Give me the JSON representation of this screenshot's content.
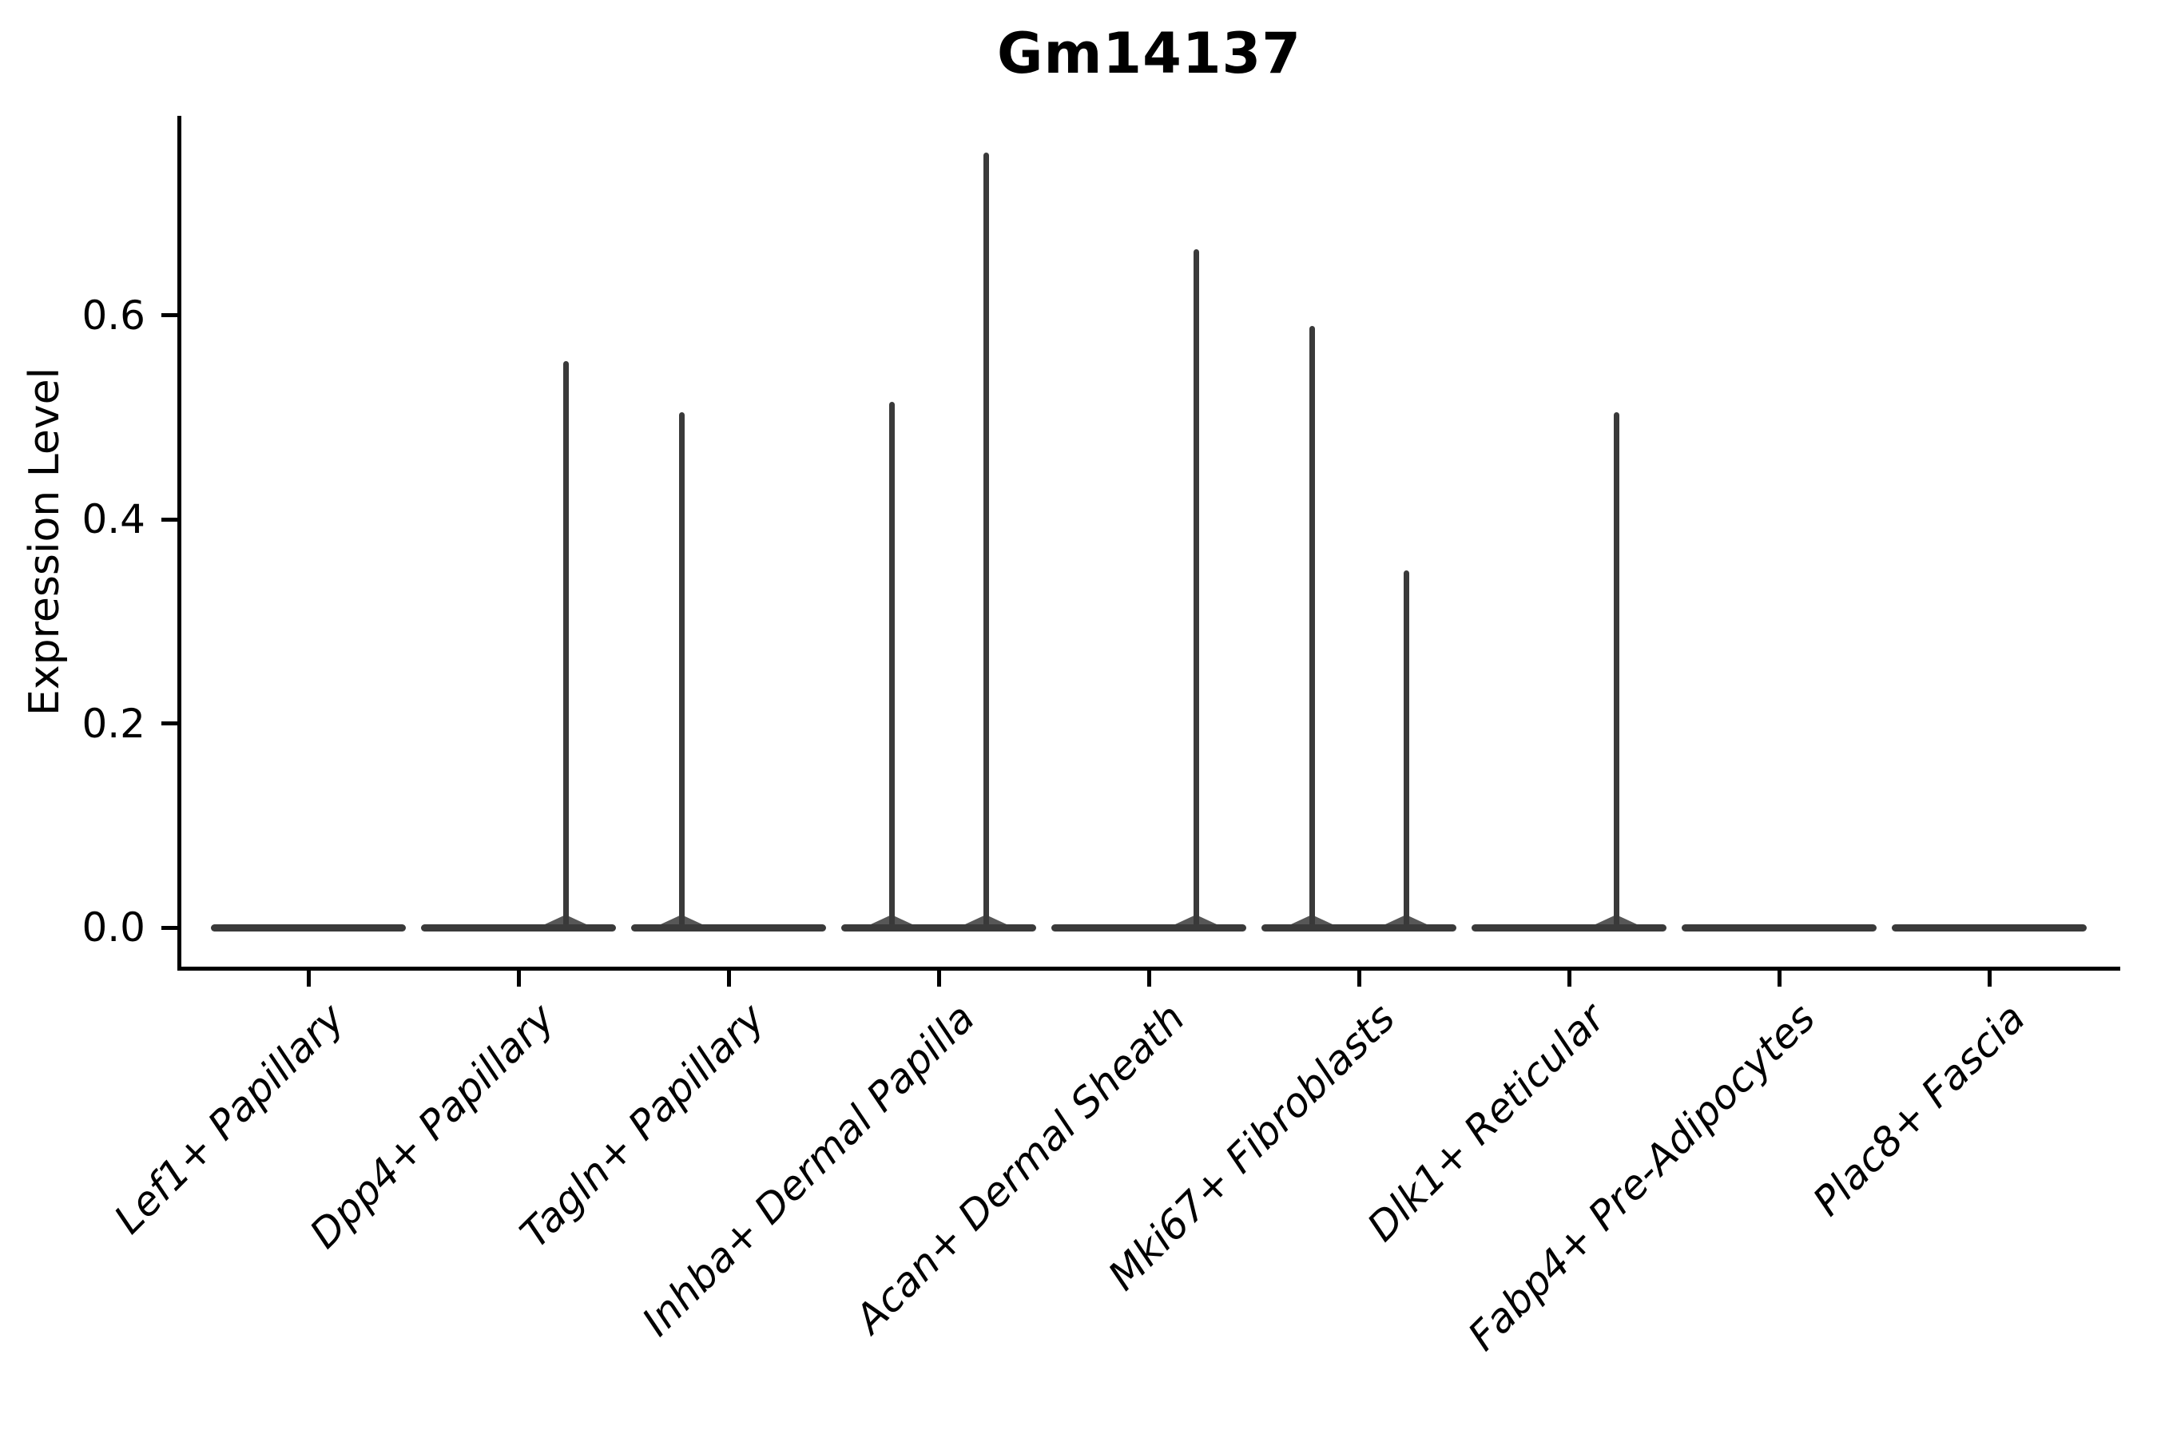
{
  "chart_data": {
    "type": "violin",
    "title": "Gm14137",
    "ylabel": "Expression Level",
    "xlabel": "",
    "ylim": [
      0,
      0.8
    ],
    "grid": false,
    "legend": "none",
    "yticks": [
      {
        "value": 0.0,
        "label": "0.0"
      },
      {
        "value": 0.2,
        "label": "0.2"
      },
      {
        "value": 0.4,
        "label": "0.4"
      },
      {
        "value": 0.6,
        "label": "0.6"
      }
    ],
    "categories": [
      "Lef1+ Papillary",
      "Dpp4+ Papillary",
      "Tagln+ Papillary",
      "Inhba+ Dermal Papilla",
      "Acan+ Dermal Sheath",
      "Mki67+ Fibroblasts",
      "Dlk1+ Reticular",
      "Fabp4+ Pre-Adipocytes",
      "Plac8+ Fascia"
    ],
    "violins": [
      {
        "category": "Lef1+ Papillary",
        "baseline_value": 0.0,
        "spikes": []
      },
      {
        "category": "Dpp4+ Papillary",
        "baseline_value": 0.0,
        "spikes": [
          {
            "side": "right",
            "max": 0.555
          }
        ]
      },
      {
        "category": "Tagln+ Papillary",
        "baseline_value": 0.0,
        "spikes": [
          {
            "side": "left",
            "max": 0.505
          }
        ]
      },
      {
        "category": "Inhba+ Dermal Papilla",
        "baseline_value": 0.0,
        "spikes": [
          {
            "side": "left",
            "max": 0.515
          },
          {
            "side": "right",
            "max": 0.76
          }
        ]
      },
      {
        "category": "Acan+ Dermal Sheath",
        "baseline_value": 0.0,
        "spikes": [
          {
            "side": "right",
            "max": 0.665
          }
        ]
      },
      {
        "category": "Mki67+ Fibroblasts",
        "baseline_value": 0.0,
        "spikes": [
          {
            "side": "left",
            "max": 0.59
          },
          {
            "side": "right",
            "max": 0.35
          }
        ]
      },
      {
        "category": "Dlk1+ Reticular",
        "baseline_value": 0.0,
        "spikes": [
          {
            "side": "right",
            "max": 0.505
          }
        ]
      },
      {
        "category": "Fabp4+ Pre-Adipocytes",
        "baseline_value": 0.0,
        "spikes": []
      },
      {
        "category": "Plac8+ Fascia",
        "baseline_value": 0.0,
        "spikes": []
      }
    ],
    "colors": {
      "violin": "#3a3a3a",
      "axis": "#000000",
      "text": "#000000",
      "background": "#ffffff"
    }
  }
}
